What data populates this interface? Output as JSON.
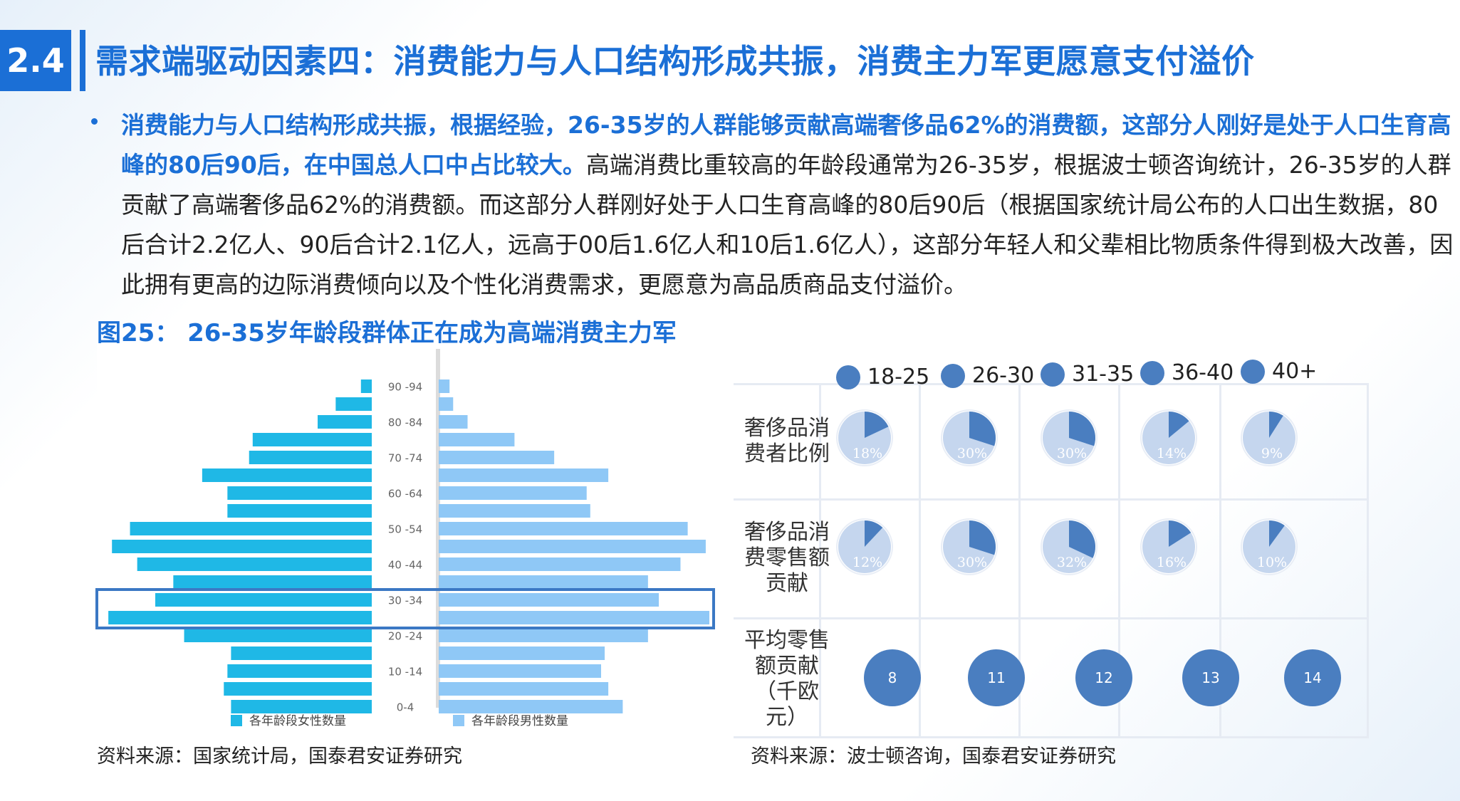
{
  "header": {
    "section_number": "2.4",
    "title": "需求端驱动因素四：消费能力与人口结构形成共振，消费主力军更愿意支付溢价"
  },
  "paragraph": {
    "highlight": "消费能力与人口结构形成共振，根据经验，26-35岁的人群能够贡献高端奢侈品62%的消费额，这部分人刚好是处于人口生育高峰的80后90后，在中国总人口中占比较大。",
    "body": "高端消费比重较高的年龄段通常为26-35岁，根据波士顿咨询统计，26-35岁的人群贡献了高端奢侈品62%的消费额。而这部分人群刚好处于人口生育高峰的80后90后（根据国家统计局公布的人口出生数据，80后合计2.2亿人、90后合计2.1亿人，远高于00后1.6亿人和10后1.6亿人），这部分年轻人和父辈相比物质条件得到极大改善，因此拥有更高的边际消费倾向以及个性化消费需求，更愿意为高品质商品支付溢价。"
  },
  "figure_title": "图25： 26-35岁年龄段群体正在成为高端消费主力军",
  "source_left": "资料来源：国家统计局，国泰君安证券研究",
  "source_right": "资料来源：波士顿咨询，国泰君安证券研究",
  "colors": {
    "brand_blue": "#1b6fd6",
    "female_bar": "#1fb8e6",
    "male_bar": "#8fc8f6",
    "highlight_box": "#3b78c4",
    "pie_dark": "#4a7ec0",
    "pie_light": "#c5d6ee"
  },
  "chart_data": [
    {
      "type": "bar",
      "subtype": "population-pyramid",
      "age_groups": [
        "0-4",
        "5-9",
        "10-14",
        "15-19",
        "20-24",
        "25-29",
        "30-34",
        "35-39",
        "40-44",
        "45-49",
        "50-54",
        "55-59",
        "60-64",
        "65-69",
        "70-74",
        "75-79",
        "80-84",
        "85-89",
        "90-94"
      ],
      "axis_tick_labels": [
        "0-4",
        "10 -14",
        "20 -24",
        "30 -34",
        "40 -44",
        "50 -54",
        "60 -64",
        "70 -74",
        "80 -84",
        "90 -94"
      ],
      "series": [
        {
          "name": "各年龄段女性数量",
          "values": [
            39,
            41,
            40,
            39,
            52,
            73,
            60,
            55,
            65,
            72,
            67,
            40,
            40,
            47,
            34,
            33,
            15,
            10,
            3
          ]
        },
        {
          "name": "各年龄段男性数量",
          "values": [
            51,
            47,
            45,
            46,
            58,
            75,
            61,
            58,
            67,
            74,
            69,
            42,
            41,
            47,
            32,
            21,
            8,
            4,
            3
          ]
        }
      ],
      "highlight_groups": [
        "25-29",
        "30-34"
      ]
    },
    {
      "type": "pie",
      "categories": [
        "18-25",
        "26-30",
        "31-35",
        "36-40",
        "40+"
      ],
      "rows": [
        {
          "label": "奢侈品消费者比例",
          "values": [
            18,
            30,
            30,
            14,
            9
          ],
          "unit": "%"
        },
        {
          "label": "奢侈品消费零售额贡献",
          "values": [
            12,
            30,
            32,
            16,
            10
          ],
          "unit": "%"
        }
      ]
    },
    {
      "type": "scatter",
      "subtype": "bubble-row",
      "categories": [
        "18-25",
        "26-30",
        "31-35",
        "36-40",
        "40+"
      ],
      "row_label": "平均零售额贡献（千欧元）",
      "values": [
        8,
        11,
        12,
        13,
        14
      ]
    }
  ],
  "right_panel": {
    "legend": [
      "18-25",
      "26-30",
      "31-35",
      "36-40",
      "40+"
    ],
    "row_labels": [
      [
        "奢侈品消",
        "费者比例"
      ],
      [
        "奢侈品消",
        "费零售额",
        "贡献"
      ],
      [
        "平均零售",
        "额贡献",
        "（千欧",
        "元）"
      ]
    ]
  }
}
